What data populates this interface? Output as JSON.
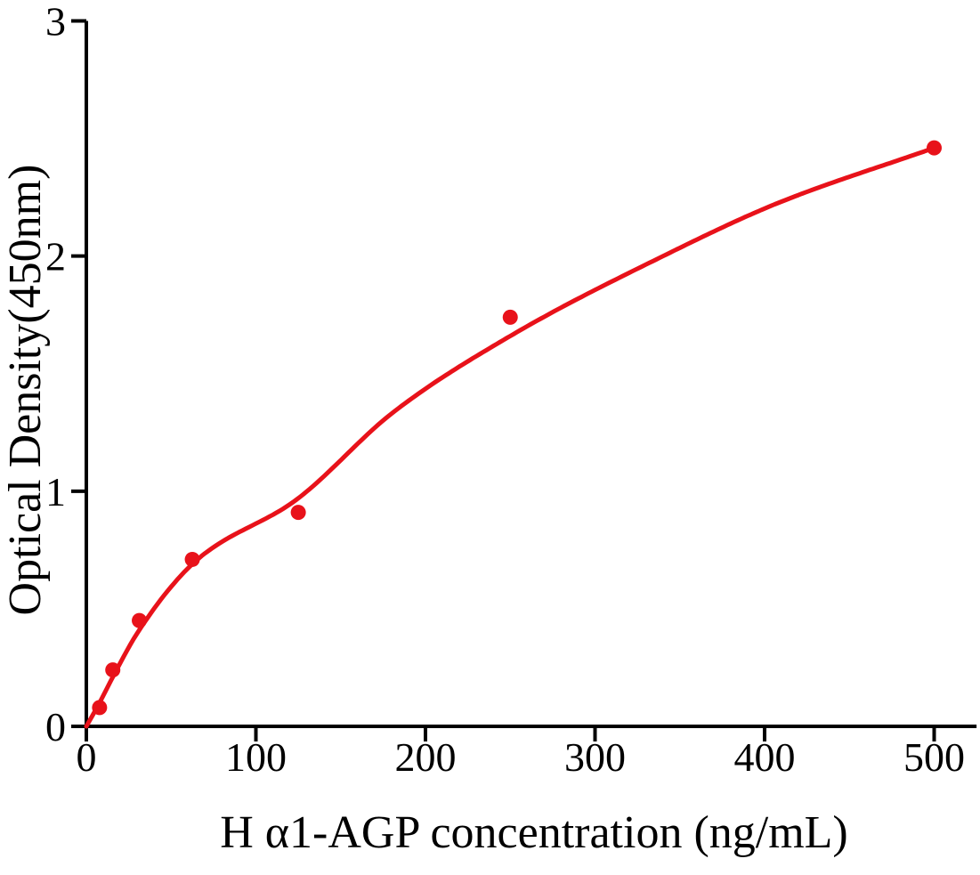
{
  "page": {
    "background": "#ffffff"
  },
  "chart_data": {
    "type": "scatter",
    "title": "",
    "xlabel": "H α1-AGP concentration (ng/mL)",
    "ylabel": "Optical Density(450nm)",
    "xlim": [
      0,
      525
    ],
    "ylim": [
      0,
      3
    ],
    "x_ticks": [
      0,
      100,
      200,
      300,
      400,
      500
    ],
    "y_ticks": [
      0,
      1,
      2,
      3
    ],
    "x_tick_labels": [
      "0",
      "100",
      "200",
      "300",
      "400",
      "500"
    ],
    "y_tick_labels": [
      "0",
      "1",
      "2",
      "3"
    ],
    "grid": false,
    "legend": false,
    "axis_color": "#000000",
    "marker_color": "#e8121a",
    "line_color": "#e8121a",
    "series": [
      {
        "name": "standard-points",
        "type": "scatter",
        "x": [
          7.8,
          15.6,
          31.25,
          62.5,
          125,
          250,
          500
        ],
        "y": [
          0.08,
          0.24,
          0.45,
          0.71,
          0.91,
          1.74,
          2.46
        ]
      },
      {
        "name": "fitted-curve",
        "type": "line",
        "x": [
          0,
          7.8,
          15.6,
          31.25,
          62.5,
          125,
          180,
          250,
          343,
          406,
          500
        ],
        "y": [
          0,
          0.1,
          0.21,
          0.41,
          0.69,
          0.97,
          1.33,
          1.66,
          2.01,
          2.22,
          2.46
        ]
      }
    ]
  }
}
